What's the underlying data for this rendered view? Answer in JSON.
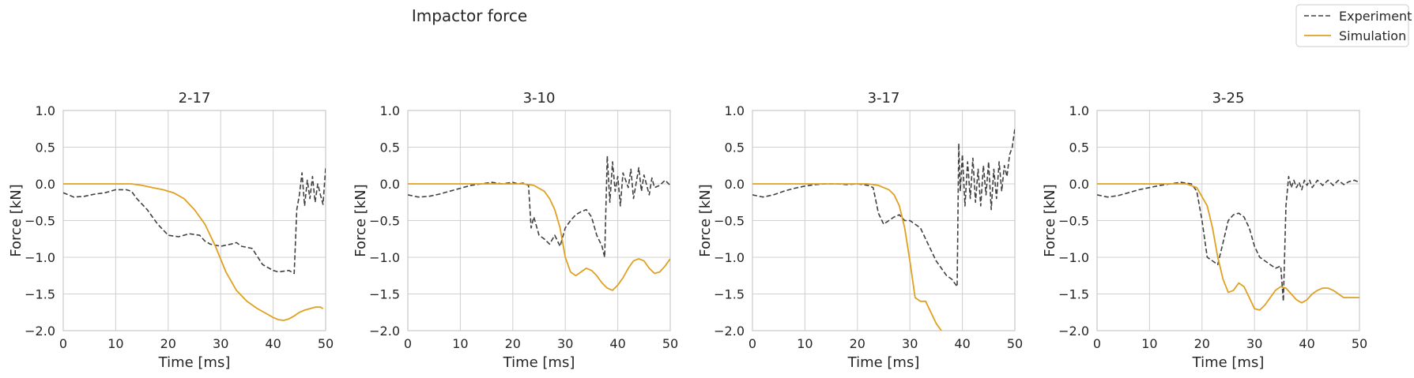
{
  "figure_title": "Impactor force",
  "legend": {
    "placement": "top-right",
    "experiment_label": "Experiment",
    "simulation_label": "Simulation"
  },
  "colors": {
    "experiment": "#404040",
    "simulation": "#e0a020",
    "grid": "#d0d0d0",
    "frame": "#c8c8c8"
  },
  "chart_data": [
    {
      "type": "line",
      "title": "2-17",
      "xlabel": "Time [ms]",
      "ylabel": "Force [kN]",
      "xlim": [
        0,
        50
      ],
      "ylim": [
        -2.0,
        1.0
      ],
      "xticks": [
        "0",
        "10",
        "20",
        "30",
        "40",
        "50"
      ],
      "yticks": [
        "1.0",
        "0.5",
        "0.0",
        "−0.5",
        "−1.0",
        "−1.5",
        "−2.0"
      ],
      "grid": true,
      "series": [
        {
          "name": "Experiment",
          "style": "dashed",
          "x": [
            0,
            2,
            4,
            6,
            8,
            9,
            10,
            12,
            13,
            14,
            16,
            18,
            20,
            22,
            24,
            26,
            27,
            28,
            30,
            32,
            33,
            34,
            36,
            38,
            40,
            41,
            43,
            44,
            44.5,
            45,
            45.5,
            46,
            46.5,
            47,
            47.5,
            48,
            48.5,
            49,
            49.5,
            50
          ],
          "y": [
            -0.12,
            -0.18,
            -0.17,
            -0.14,
            -0.12,
            -0.1,
            -0.08,
            -0.08,
            -0.1,
            -0.2,
            -0.35,
            -0.55,
            -0.7,
            -0.72,
            -0.68,
            -0.7,
            -0.78,
            -0.82,
            -0.85,
            -0.82,
            -0.8,
            -0.85,
            -0.88,
            -1.1,
            -1.18,
            -1.2,
            -1.18,
            -1.22,
            -0.35,
            -0.15,
            0.15,
            -0.3,
            0.05,
            -0.2,
            0.1,
            -0.25,
            0.0,
            -0.15,
            -0.28,
            0.22
          ]
        },
        {
          "name": "Simulation",
          "style": "solid",
          "x": [
            0,
            5,
            10,
            13,
            15,
            17,
            19,
            21,
            23,
            25,
            27,
            29,
            31,
            33,
            35,
            37,
            39,
            40,
            41,
            42,
            43,
            44,
            45,
            46,
            47,
            48,
            49,
            49.5
          ],
          "y": [
            0.0,
            0.0,
            0.0,
            0.0,
            -0.02,
            -0.05,
            -0.08,
            -0.12,
            -0.2,
            -0.35,
            -0.55,
            -0.85,
            -1.2,
            -1.45,
            -1.6,
            -1.7,
            -1.78,
            -1.82,
            -1.85,
            -1.86,
            -1.84,
            -1.8,
            -1.75,
            -1.72,
            -1.7,
            -1.68,
            -1.68,
            -1.7
          ]
        }
      ]
    },
    {
      "type": "line",
      "title": "3-10",
      "xlabel": "Time [ms]",
      "ylabel": "Force [kN]",
      "xlim": [
        0,
        50
      ],
      "ylim": [
        -2.0,
        1.0
      ],
      "xticks": [
        "0",
        "10",
        "20",
        "30",
        "40",
        "50"
      ],
      "yticks": [
        "1.0",
        "0.5",
        "0.0",
        "−0.5",
        "−1.0",
        "−1.5",
        "−2.0"
      ],
      "grid": true,
      "series": [
        {
          "name": "Experiment",
          "style": "dashed",
          "x": [
            0,
            2,
            4,
            6,
            8,
            10,
            12,
            14,
            16,
            18,
            20,
            21,
            22,
            23,
            23.5,
            24,
            25,
            26,
            27,
            28,
            29,
            30,
            31,
            32,
            33,
            34,
            35,
            36,
            37,
            37.5,
            38,
            38.5,
            39,
            39.5,
            40,
            40.5,
            41,
            42,
            42.5,
            43,
            44,
            44.5,
            45,
            46,
            46.5,
            47,
            48,
            49,
            50
          ],
          "y": [
            -0.15,
            -0.18,
            -0.17,
            -0.14,
            -0.1,
            -0.06,
            -0.02,
            0.0,
            0.02,
            0.0,
            0.02,
            0.0,
            0.01,
            -0.02,
            -0.6,
            -0.45,
            -0.7,
            -0.75,
            -0.82,
            -0.7,
            -0.85,
            -0.6,
            -0.5,
            -0.42,
            -0.38,
            -0.35,
            -0.45,
            -0.7,
            -0.85,
            -1.0,
            0.38,
            -0.25,
            0.3,
            -0.1,
            0.1,
            -0.3,
            0.15,
            -0.05,
            0.2,
            -0.2,
            0.22,
            -0.1,
            0.12,
            -0.15,
            0.08,
            -0.05,
            -0.02,
            0.05,
            -0.02
          ]
        },
        {
          "name": "Simulation",
          "style": "solid",
          "x": [
            0,
            5,
            10,
            15,
            20,
            22,
            24,
            26,
            27,
            28,
            29,
            30,
            31,
            32,
            33,
            34,
            35,
            36,
            37,
            38,
            39,
            40,
            41,
            42,
            43,
            44,
            45,
            46,
            47,
            48,
            49,
            50
          ],
          "y": [
            0.0,
            0.0,
            0.0,
            0.0,
            0.0,
            0.0,
            -0.02,
            -0.1,
            -0.2,
            -0.35,
            -0.6,
            -1.0,
            -1.2,
            -1.25,
            -1.2,
            -1.15,
            -1.18,
            -1.25,
            -1.35,
            -1.42,
            -1.45,
            -1.38,
            -1.28,
            -1.15,
            -1.05,
            -1.02,
            -1.05,
            -1.15,
            -1.22,
            -1.2,
            -1.12,
            -1.02
          ]
        }
      ]
    },
    {
      "type": "line",
      "title": "3-17",
      "xlabel": "Time [ms]",
      "ylabel": "Force [kN]",
      "xlim": [
        0,
        50
      ],
      "ylim": [
        -2.0,
        1.0
      ],
      "xticks": [
        "0",
        "10",
        "20",
        "30",
        "40",
        "50"
      ],
      "yticks": [
        "1.0",
        "0.5",
        "0.0",
        "−0.5",
        "−1.0",
        "−1.5",
        "−2.0"
      ],
      "grid": true,
      "series": [
        {
          "name": "Experiment",
          "style": "dashed",
          "x": [
            0,
            2,
            4,
            6,
            8,
            10,
            12,
            14,
            16,
            18,
            20,
            22,
            23,
            24,
            25,
            26,
            27,
            28,
            29,
            30,
            31,
            32,
            33,
            34,
            35,
            36,
            37,
            38,
            39,
            39.3,
            39.6,
            40,
            40.5,
            41,
            41.5,
            42,
            42.5,
            43,
            43.5,
            44,
            44.5,
            45,
            45.5,
            46,
            46.5,
            47,
            47.5,
            48,
            48.5,
            49,
            49.5,
            50
          ],
          "y": [
            -0.15,
            -0.18,
            -0.15,
            -0.1,
            -0.06,
            -0.03,
            -0.01,
            0.0,
            0.0,
            -0.01,
            0.0,
            -0.02,
            -0.05,
            -0.4,
            -0.55,
            -0.5,
            -0.45,
            -0.42,
            -0.5,
            -0.5,
            -0.55,
            -0.6,
            -0.75,
            -0.9,
            -1.05,
            -1.15,
            -1.25,
            -1.3,
            -1.4,
            0.55,
            -0.1,
            0.4,
            -0.3,
            0.3,
            -0.2,
            0.35,
            -0.25,
            0.2,
            -0.3,
            0.25,
            -0.15,
            0.3,
            -0.35,
            0.2,
            -0.2,
            0.3,
            -0.1,
            0.25,
            0.1,
            0.4,
            0.5,
            0.75
          ]
        },
        {
          "name": "Simulation",
          "style": "solid",
          "x": [
            0,
            5,
            10,
            15,
            20,
            22,
            24,
            26,
            27,
            28,
            29,
            30,
            31,
            32,
            33,
            34,
            35,
            36
          ],
          "y": [
            0.0,
            0.0,
            0.0,
            0.0,
            0.0,
            0.0,
            -0.02,
            -0.08,
            -0.15,
            -0.3,
            -0.6,
            -1.05,
            -1.55,
            -1.6,
            -1.6,
            -1.75,
            -1.9,
            -2.0
          ]
        }
      ]
    },
    {
      "type": "line",
      "title": "3-25",
      "xlabel": "Time [ms]",
      "ylabel": "Force [kN]",
      "xlim": [
        0,
        50
      ],
      "ylim": [
        -2.0,
        1.0
      ],
      "xticks": [
        "0",
        "10",
        "20",
        "30",
        "40",
        "50"
      ],
      "yticks": [
        "1.0",
        "0.5",
        "0.0",
        "−0.5",
        "−1.0",
        "−1.5",
        "−2.0"
      ],
      "grid": true,
      "series": [
        {
          "name": "Experiment",
          "style": "dashed",
          "x": [
            0,
            2,
            4,
            6,
            8,
            10,
            12,
            14,
            16,
            18,
            19,
            20,
            21,
            22,
            23,
            24,
            25,
            26,
            27,
            28,
            29,
            30,
            31,
            32,
            33,
            34,
            35,
            35.5,
            36,
            36.5,
            37,
            37.5,
            38,
            38.5,
            39,
            39.5,
            40,
            40.5,
            41,
            42,
            43,
            44,
            45,
            46,
            47,
            48,
            49,
            50
          ],
          "y": [
            -0.15,
            -0.18,
            -0.16,
            -0.12,
            -0.08,
            -0.05,
            -0.02,
            0.0,
            0.02,
            0.0,
            -0.1,
            -0.5,
            -1.0,
            -1.05,
            -1.1,
            -0.8,
            -0.5,
            -0.42,
            -0.4,
            -0.45,
            -0.6,
            -0.85,
            -1.0,
            -1.05,
            -1.1,
            -1.15,
            -1.12,
            -1.6,
            -0.3,
            0.1,
            -0.05,
            0.05,
            -0.05,
            0.02,
            -0.08,
            0.05,
            -0.02,
            0.05,
            -0.05,
            0.05,
            -0.02,
            0.05,
            -0.02,
            0.05,
            -0.01,
            0.03,
            0.05,
            0.02
          ]
        },
        {
          "name": "Simulation",
          "style": "solid",
          "x": [
            0,
            5,
            10,
            15,
            17,
            19,
            21,
            22,
            23,
            24,
            25,
            26,
            27,
            28,
            29,
            30,
            31,
            32,
            33,
            34,
            35,
            36,
            37,
            38,
            39,
            40,
            41,
            42,
            43,
            44,
            45,
            46,
            47,
            48,
            49,
            50
          ],
          "y": [
            0.0,
            0.0,
            0.0,
            0.0,
            0.0,
            -0.05,
            -0.3,
            -0.6,
            -1.0,
            -1.3,
            -1.48,
            -1.45,
            -1.35,
            -1.4,
            -1.55,
            -1.7,
            -1.72,
            -1.65,
            -1.55,
            -1.45,
            -1.4,
            -1.42,
            -1.5,
            -1.58,
            -1.62,
            -1.58,
            -1.5,
            -1.45,
            -1.42,
            -1.42,
            -1.45,
            -1.5,
            -1.55,
            -1.55,
            -1.55,
            -1.55
          ]
        }
      ]
    }
  ]
}
